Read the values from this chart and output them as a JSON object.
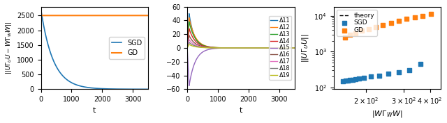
{
  "fig_width": 6.4,
  "fig_height": 1.77,
  "dpi": 100,
  "panel1": {
    "t_max": 3500,
    "sgd_decay": 0.0025,
    "sgd_start": 2700,
    "gd_value": 2500,
    "xlabel": "t",
    "ylabel": "$||U\\Gamma_U U - W\\Gamma_W W||$",
    "ylim": [
      0,
      2800
    ],
    "yticks": [
      0,
      500,
      1000,
      1500,
      2000,
      2500
    ],
    "xticks": [
      0,
      1000,
      2000,
      3000
    ],
    "sgd_color": "#1f77b4",
    "gd_color": "#ff7f0e"
  },
  "panel2": {
    "t_max": 3500,
    "xlabel": "t",
    "ylim": [
      -60,
      60
    ],
    "yticks": [
      -60,
      -40,
      -20,
      0,
      20,
      40,
      60
    ],
    "xticks": [
      0,
      1000,
      2000,
      3000
    ],
    "delta_labels": [
      "Δ11",
      "Δ12",
      "Δ13",
      "Δ14",
      "Δ15",
      "Δ16",
      "Δ17",
      "Δ18",
      "Δ19"
    ],
    "delta_colors": [
      "#1f77b4",
      "#ff7f0e",
      "#2ca02c",
      "#d62728",
      "#9467bd",
      "#8c564b",
      "#e377c2",
      "#7f7f7f",
      "#bcbd22"
    ],
    "delta_peaks": [
      50,
      44,
      38,
      28,
      -55,
      18,
      12,
      8,
      5
    ],
    "delta_peak_times": [
      60,
      60,
      60,
      60,
      60,
      60,
      60,
      60,
      60
    ],
    "delta_finals": [
      0,
      0,
      0,
      0,
      0,
      0,
      0,
      0,
      0
    ],
    "decay_rates": [
      0.006,
      0.005,
      0.005,
      0.005,
      0.005,
      0.005,
      0.005,
      0.005,
      0.005
    ]
  },
  "panel3": {
    "xlabel": "$|W\\Gamma_W W|$",
    "ylabel": "$||U\\Gamma_U U||$",
    "xlim": [
      140,
      450
    ],
    "ylim": [
      90,
      18000
    ],
    "sgd_color": "#1f77b4",
    "gd_color": "#ff7f0e",
    "theory_color": "black",
    "theory_label": "theory",
    "sgd_label": "SGD",
    "gd_label": "GD",
    "sgd_x": [
      155,
      160,
      163,
      167,
      172,
      178,
      185,
      195,
      210,
      230,
      255,
      285,
      320,
      360
    ],
    "sgd_y": [
      150,
      155,
      158,
      162,
      167,
      172,
      180,
      190,
      202,
      218,
      242,
      268,
      305,
      460
    ],
    "gd_x": [
      158,
      167,
      178,
      190,
      205,
      222,
      240,
      262,
      285,
      310,
      340,
      370,
      405
    ],
    "gd_y": [
      2500,
      2900,
      3300,
      3800,
      4300,
      4900,
      5600,
      6400,
      7200,
      8100,
      9000,
      10000,
      11500
    ],
    "theory_x_start": 148,
    "theory_x_end": 420,
    "theory_slope": 1.0,
    "theory_intercept_log": -0.78
  }
}
